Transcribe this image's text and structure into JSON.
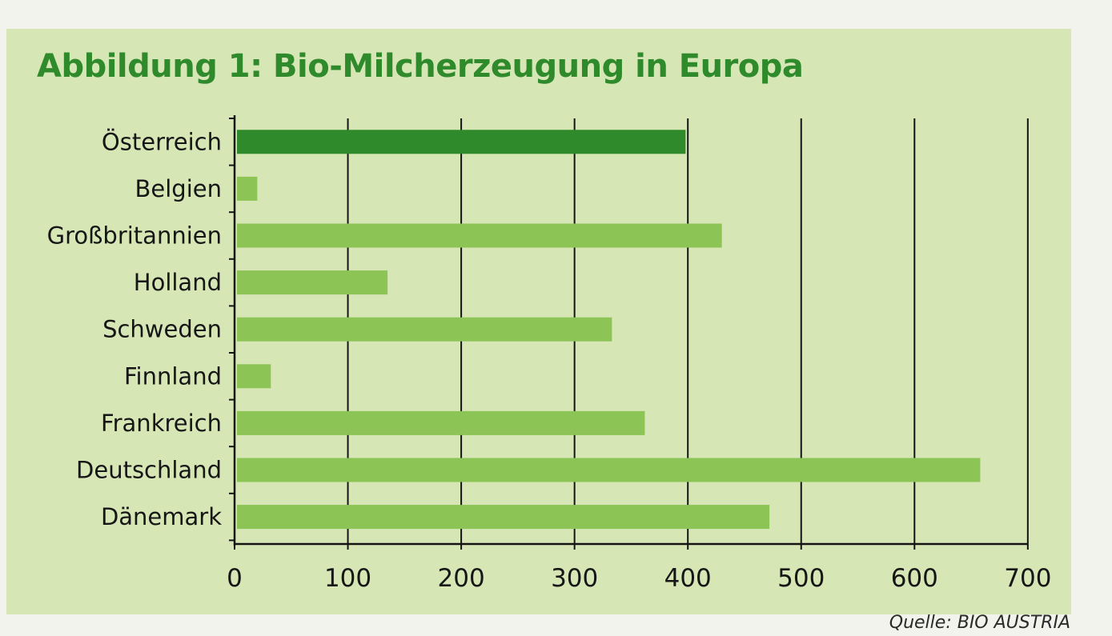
{
  "chart_data": {
    "type": "bar",
    "orientation": "horizontal",
    "title": "Abbildung 1: Bio-Milcherzeugung in Europa",
    "categories": [
      "Österreich",
      "Belgien",
      "Großbritannien",
      "Holland",
      "Schweden",
      "Finnland",
      "Frankreich",
      "Deutschland",
      "Dänemark"
    ],
    "values": [
      398,
      20,
      430,
      135,
      333,
      32,
      362,
      658,
      472
    ],
    "xlim": [
      0,
      700
    ],
    "xticks": [
      "0",
      "100",
      "200",
      "300",
      "400",
      "500",
      "600",
      "700"
    ],
    "xlabel": "",
    "ylabel": "",
    "grid": true,
    "source": "Quelle: BIO AUSTRIA",
    "colors": {
      "highlight_bar": "#2e8a2a",
      "bar": "#8cc455",
      "background": "#d6e6b5",
      "title": "#2e8a2a"
    }
  }
}
